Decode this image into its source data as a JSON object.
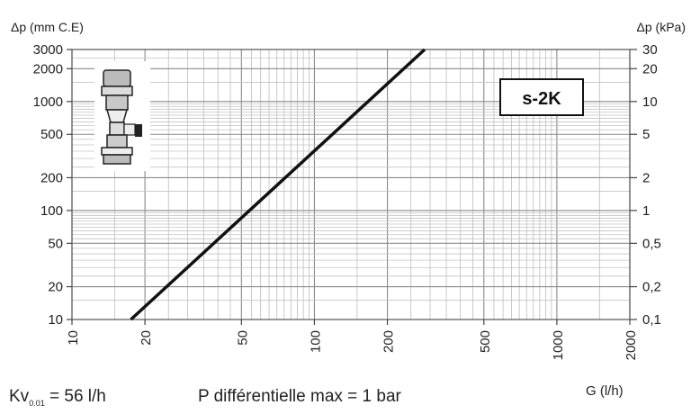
{
  "chart_data": {
    "type": "line",
    "x_scale": "log",
    "y_scale": "log",
    "xlabel": "G (l/h)",
    "ylabel_left": "Δp (mm C.E)",
    "ylabel_right": "Δp (kPa)",
    "xlim": [
      10,
      2000
    ],
    "ylim": [
      10,
      3000
    ],
    "x_ticks": [
      10,
      20,
      50,
      100,
      200,
      500,
      1000,
      2000
    ],
    "x_tick_labels": [
      "10",
      "20",
      "50",
      "100",
      "200",
      "500",
      "1000",
      "2000"
    ],
    "y_left_ticks": [
      10,
      20,
      50,
      100,
      200,
      500,
      1000,
      2000,
      3000
    ],
    "y_left_tick_labels": [
      "10",
      "20",
      "50",
      "100",
      "200",
      "500",
      "1000",
      "2000",
      "3000"
    ],
    "y_right_tick_labels": [
      "0,1",
      "0,2",
      "0,5",
      "1",
      "2",
      "5",
      "10",
      "20",
      "30"
    ],
    "grid": true,
    "series": [
      {
        "x": [
          17.5,
          285
        ],
        "y": [
          10,
          3000
        ]
      }
    ],
    "label_box": "s-2K",
    "color": "#111111"
  },
  "footer": {
    "kv_main": "Kv",
    "kv_sub": "0.01",
    "kv_value": " = 56 l/h",
    "p_diff": "P différentielle max = 1 bar"
  },
  "icon": "valve-actuator-icon"
}
